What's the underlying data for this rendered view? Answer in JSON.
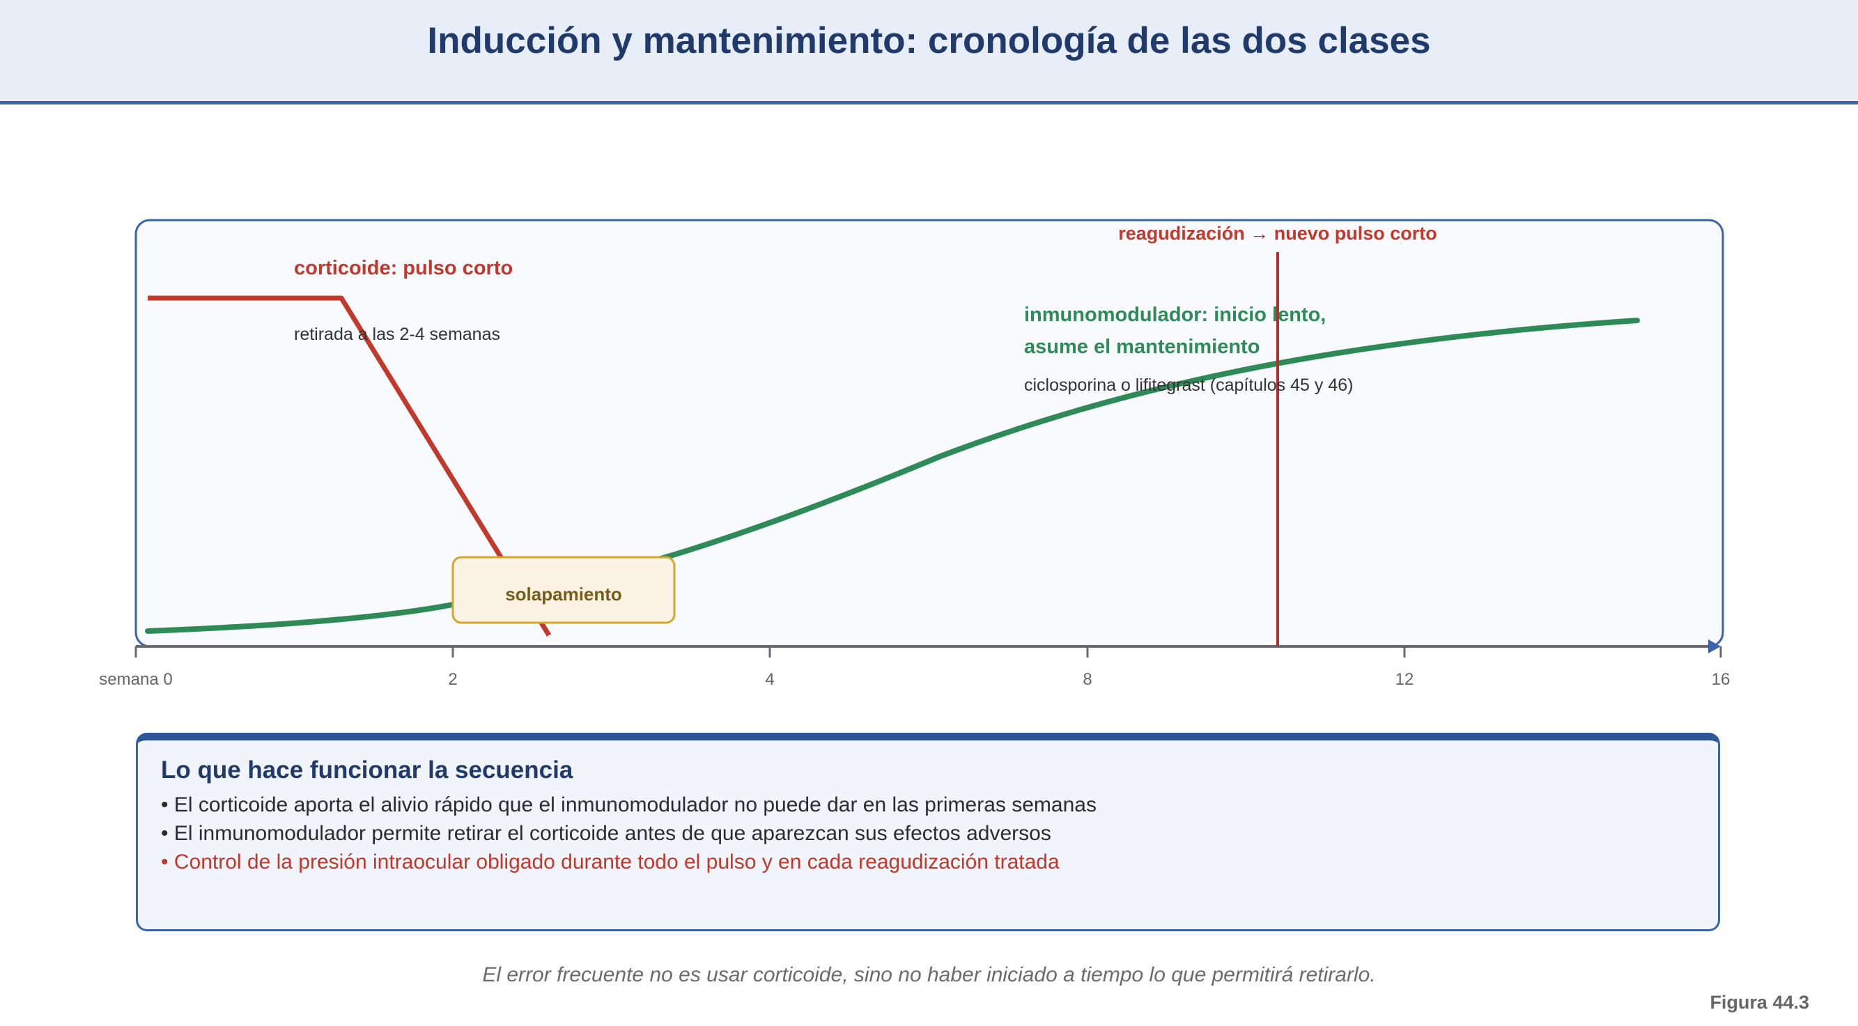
{
  "header": {
    "title": "Inducción y mantenimiento: cronología de las dos clases"
  },
  "timeline": {
    "axis_ticks": [
      "semana 0",
      "2",
      "4",
      "8",
      "12",
      "16"
    ],
    "corticoid": {
      "label": "corticoide: pulso corto",
      "note": "retirada a las 2-4 semanas",
      "color": "#c0392b"
    },
    "immuno": {
      "label_line1": "inmunomodulador: inicio lento,",
      "label_line2": "asume el mantenimiento",
      "note": "ciclosporina o lifitegrast (capítulos 45 y 46)",
      "color": "#2e8b57"
    },
    "flare_label": "reagudización → nuevo pulso corto",
    "overlap_label": "solapamiento"
  },
  "summary": {
    "title": "Lo que hace funcionar la secuencia",
    "bullets": [
      "• El corticoide aporta el alivio rápido que el inmunomodulador no puede dar en las primeras semanas",
      "• El inmunomodulador permite retirar el corticoide antes de que aparezcan sus efectos adversos"
    ],
    "warning": "• Control de la presión intraocular obligado durante todo el pulso y en cada reagudización tratada"
  },
  "caption": "El error frecuente no es usar corticoide, sino no haber iniciado a tiempo lo que permitirá retirarlo.",
  "figure_label": "Figura 44.3"
}
